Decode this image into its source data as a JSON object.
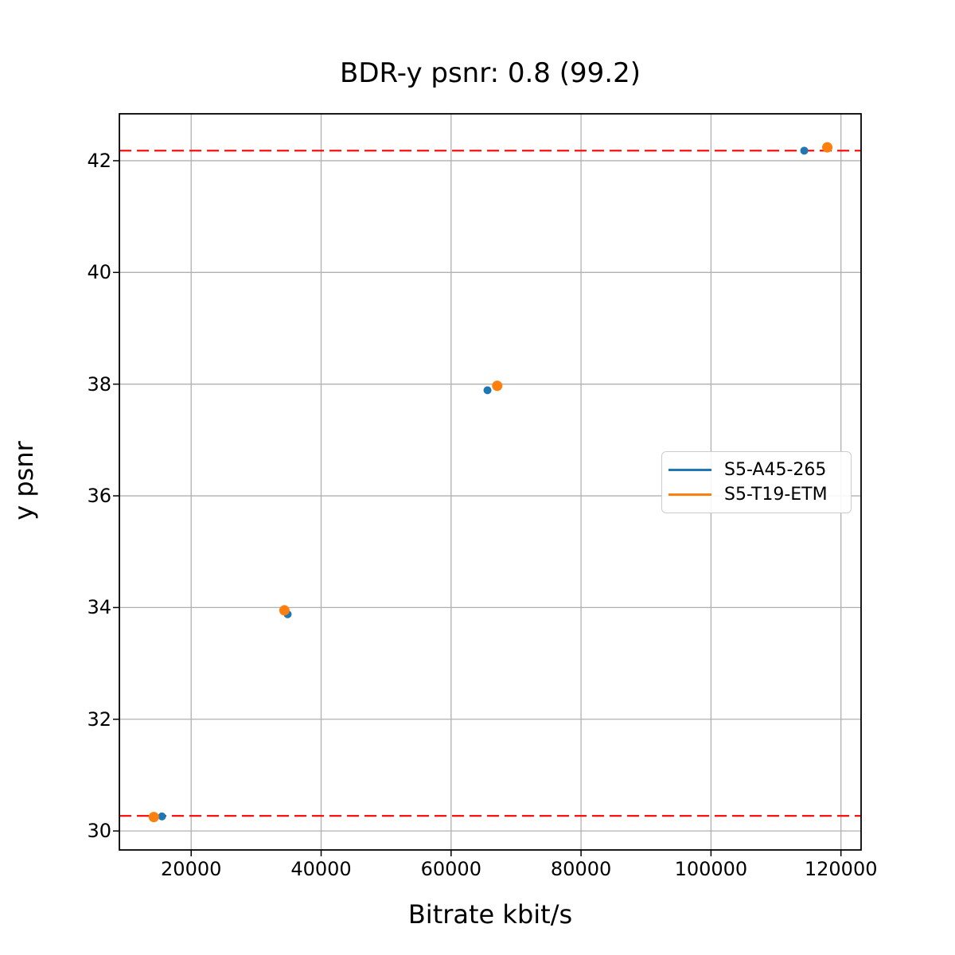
{
  "chart_data": {
    "type": "line",
    "title": "BDR-y psnr: 0.8 (99.2)",
    "xlabel": "Bitrate kbit/s",
    "ylabel": "y psnr",
    "xlim": [
      8950,
      123100
    ],
    "ylim": [
      29.66,
      42.84
    ],
    "xticks": [
      20000,
      40000,
      60000,
      80000,
      100000,
      120000
    ],
    "yticks": [
      30,
      32,
      34,
      36,
      38,
      40,
      42
    ],
    "grid": true,
    "grid_color": "#b0b0b0",
    "legend_position": "center right",
    "series": [
      {
        "name": "S5-A45-265",
        "color": "#1f77b4",
        "marker": "o",
        "marker_radius": 5,
        "points": [
          [
            15500,
            30.26
          ],
          [
            34850,
            33.88
          ],
          [
            65600,
            37.89
          ],
          [
            114350,
            42.18
          ]
        ]
      },
      {
        "name": "S5-T19-ETM",
        "color": "#ff7f0e",
        "marker": "o",
        "marker_radius": 6.5,
        "points": [
          [
            14250,
            30.25
          ],
          [
            34350,
            33.95
          ],
          [
            67100,
            37.97
          ],
          [
            117900,
            42.24
          ]
        ]
      }
    ],
    "fill_between": {
      "color": "#008000",
      "opacity": 0.25
    },
    "hlines": [
      {
        "y": 42.18,
        "color": "#ff0000",
        "style": "dashed"
      },
      {
        "y": 30.27,
        "color": "#ff0000",
        "style": "dashed"
      }
    ]
  }
}
